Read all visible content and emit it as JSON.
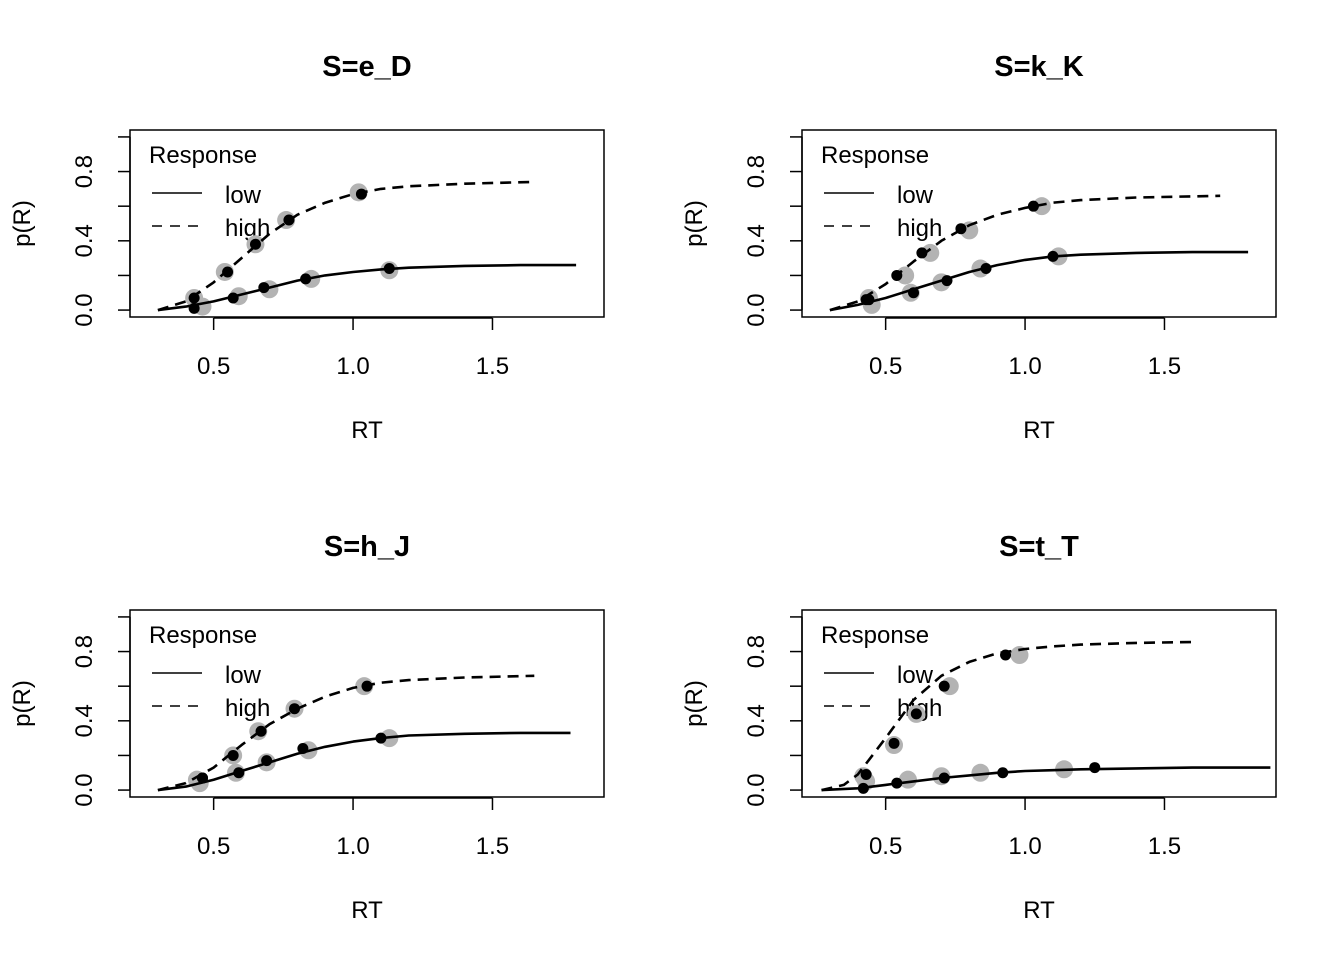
{
  "chart_data": [
    {
      "type": "line",
      "title": "S=e_D",
      "xlabel": "RT",
      "ylabel": "p(R)",
      "xlim": [
        0.2,
        1.9
      ],
      "ylim": [
        -0.04,
        1.04
      ],
      "x_ticks": [
        "0.5",
        "1.0",
        "1.5"
      ],
      "y_ticks": [
        "0.0",
        "0.4",
        "0.8"
      ],
      "legend": {
        "title": "Response",
        "entries": [
          "low",
          "high"
        ],
        "position": "top-left"
      },
      "curves": [
        {
          "name": "low",
          "style": "solid",
          "x": [
            0.3,
            0.4,
            0.5,
            0.6,
            0.7,
            0.8,
            0.9,
            1.0,
            1.1,
            1.2,
            1.4,
            1.6,
            1.8
          ],
          "y": [
            0.0,
            0.02,
            0.05,
            0.09,
            0.13,
            0.17,
            0.2,
            0.22,
            0.235,
            0.245,
            0.255,
            0.26,
            0.26
          ]
        },
        {
          "name": "high",
          "style": "dashed",
          "x": [
            0.3,
            0.4,
            0.5,
            0.6,
            0.7,
            0.8,
            0.9,
            1.0,
            1.1,
            1.2,
            1.4,
            1.65
          ],
          "y": [
            0.0,
            0.05,
            0.16,
            0.3,
            0.44,
            0.55,
            0.62,
            0.67,
            0.7,
            0.715,
            0.73,
            0.74
          ]
        }
      ],
      "observed": [
        {
          "name": "low",
          "x": [
            0.46,
            0.59,
            0.7,
            0.85,
            1.13
          ],
          "y": [
            0.02,
            0.08,
            0.12,
            0.18,
            0.23
          ]
        },
        {
          "name": "high",
          "x": [
            0.43,
            0.54,
            0.65,
            0.76,
            1.02
          ],
          "y": [
            0.07,
            0.22,
            0.38,
            0.52,
            0.68
          ]
        }
      ],
      "predicted": [
        {
          "name": "low",
          "x": [
            0.43,
            0.57,
            0.68,
            0.83,
            1.13
          ],
          "y": [
            0.01,
            0.07,
            0.13,
            0.18,
            0.24
          ]
        },
        {
          "name": "high",
          "x": [
            0.43,
            0.55,
            0.65,
            0.77,
            1.03
          ],
          "y": [
            0.07,
            0.22,
            0.38,
            0.52,
            0.67
          ]
        }
      ]
    },
    {
      "type": "line",
      "title": "S=k_K",
      "xlabel": "RT",
      "ylabel": "p(R)",
      "xlim": [
        0.2,
        1.9
      ],
      "ylim": [
        -0.04,
        1.04
      ],
      "x_ticks": [
        "0.5",
        "1.0",
        "1.5"
      ],
      "y_ticks": [
        "0.0",
        "0.4",
        "0.8"
      ],
      "legend": {
        "title": "Response",
        "entries": [
          "low",
          "high"
        ],
        "position": "top-left"
      },
      "curves": [
        {
          "name": "low",
          "style": "solid",
          "x": [
            0.3,
            0.4,
            0.5,
            0.6,
            0.7,
            0.8,
            0.9,
            1.0,
            1.1,
            1.2,
            1.4,
            1.6,
            1.8
          ],
          "y": [
            0.0,
            0.03,
            0.07,
            0.12,
            0.17,
            0.22,
            0.26,
            0.29,
            0.31,
            0.32,
            0.33,
            0.335,
            0.335
          ]
        },
        {
          "name": "high",
          "style": "dashed",
          "x": [
            0.3,
            0.4,
            0.5,
            0.6,
            0.7,
            0.8,
            0.9,
            1.0,
            1.1,
            1.2,
            1.4,
            1.7
          ],
          "y": [
            0.0,
            0.05,
            0.15,
            0.28,
            0.4,
            0.49,
            0.55,
            0.59,
            0.62,
            0.635,
            0.65,
            0.66
          ]
        }
      ],
      "observed": [
        {
          "name": "low",
          "x": [
            0.45,
            0.59,
            0.7,
            0.84,
            1.12
          ],
          "y": [
            0.03,
            0.1,
            0.16,
            0.24,
            0.31
          ]
        },
        {
          "name": "high",
          "x": [
            0.44,
            0.57,
            0.66,
            0.8,
            1.06
          ],
          "y": [
            0.07,
            0.2,
            0.33,
            0.46,
            0.6
          ]
        }
      ],
      "predicted": [
        {
          "name": "low",
          "x": [
            0.44,
            0.6,
            0.72,
            0.86,
            1.1
          ],
          "y": [
            0.06,
            0.1,
            0.17,
            0.24,
            0.31
          ]
        },
        {
          "name": "high",
          "x": [
            0.43,
            0.54,
            0.63,
            0.77,
            1.03
          ],
          "y": [
            0.06,
            0.2,
            0.33,
            0.47,
            0.6
          ]
        }
      ]
    },
    {
      "type": "line",
      "title": "S=h_J",
      "xlabel": "RT",
      "ylabel": "p(R)",
      "xlim": [
        0.2,
        1.9
      ],
      "ylim": [
        -0.04,
        1.04
      ],
      "x_ticks": [
        "0.5",
        "1.0",
        "1.5"
      ],
      "y_ticks": [
        "0.0",
        "0.4",
        "0.8"
      ],
      "legend": {
        "title": "Response",
        "entries": [
          "low",
          "high"
        ],
        "position": "top-left"
      },
      "curves": [
        {
          "name": "low",
          "style": "solid",
          "x": [
            0.3,
            0.4,
            0.5,
            0.6,
            0.7,
            0.8,
            0.9,
            1.0,
            1.1,
            1.2,
            1.4,
            1.6,
            1.78
          ],
          "y": [
            0.0,
            0.02,
            0.06,
            0.11,
            0.16,
            0.21,
            0.25,
            0.28,
            0.3,
            0.315,
            0.325,
            0.33,
            0.33
          ]
        },
        {
          "name": "high",
          "style": "dashed",
          "x": [
            0.3,
            0.4,
            0.5,
            0.6,
            0.7,
            0.8,
            0.9,
            1.0,
            1.1,
            1.2,
            1.4,
            1.65
          ],
          "y": [
            0.0,
            0.04,
            0.13,
            0.26,
            0.38,
            0.47,
            0.54,
            0.59,
            0.62,
            0.635,
            0.65,
            0.66
          ]
        }
      ],
      "observed": [
        {
          "name": "low",
          "x": [
            0.45,
            0.58,
            0.69,
            0.84,
            1.13
          ],
          "y": [
            0.04,
            0.1,
            0.16,
            0.23,
            0.3
          ]
        },
        {
          "name": "high",
          "x": [
            0.44,
            0.57,
            0.66,
            0.79,
            1.04
          ],
          "y": [
            0.06,
            0.2,
            0.34,
            0.47,
            0.6
          ]
        }
      ],
      "predicted": [
        {
          "name": "low",
          "x": [
            0.46,
            0.59,
            0.69,
            0.82,
            1.1
          ],
          "y": [
            0.07,
            0.1,
            0.17,
            0.24,
            0.3
          ]
        },
        {
          "name": "high",
          "x": [
            0.46,
            0.57,
            0.67,
            0.79,
            1.05
          ],
          "y": [
            0.07,
            0.2,
            0.34,
            0.47,
            0.6
          ]
        }
      ]
    },
    {
      "type": "line",
      "title": "S=t_T",
      "xlabel": "RT",
      "ylabel": "p(R)",
      "xlim": [
        0.2,
        1.9
      ],
      "ylim": [
        -0.04,
        1.04
      ],
      "x_ticks": [
        "0.5",
        "1.0",
        "1.5"
      ],
      "y_ticks": [
        "0.0",
        "0.4",
        "0.8"
      ],
      "legend": {
        "title": "Response",
        "entries": [
          "low",
          "high"
        ],
        "position": "top-left"
      },
      "curves": [
        {
          "name": "low",
          "style": "solid",
          "x": [
            0.27,
            0.4,
            0.5,
            0.6,
            0.7,
            0.8,
            0.9,
            1.0,
            1.1,
            1.2,
            1.4,
            1.6,
            1.88
          ],
          "y": [
            0.0,
            0.01,
            0.03,
            0.05,
            0.07,
            0.085,
            0.1,
            0.11,
            0.115,
            0.12,
            0.125,
            0.13,
            0.13
          ]
        },
        {
          "name": "high",
          "style": "dashed",
          "x": [
            0.27,
            0.35,
            0.4,
            0.5,
            0.6,
            0.7,
            0.8,
            0.9,
            1.0,
            1.1,
            1.2,
            1.4,
            1.6
          ],
          "y": [
            0.0,
            0.03,
            0.09,
            0.3,
            0.52,
            0.66,
            0.74,
            0.79,
            0.815,
            0.83,
            0.84,
            0.85,
            0.855
          ]
        }
      ],
      "observed": [
        {
          "name": "low",
          "x": [
            0.43,
            0.58,
            0.7,
            0.84,
            1.14
          ],
          "y": [
            0.05,
            0.06,
            0.08,
            0.1,
            0.12
          ]
        },
        {
          "name": "high",
          "x": [
            0.42,
            0.53,
            0.61,
            0.73,
            0.98
          ],
          "y": [
            0.08,
            0.26,
            0.44,
            0.6,
            0.78
          ]
        }
      ],
      "predicted": [
        {
          "name": "low",
          "x": [
            0.42,
            0.54,
            0.71,
            0.92,
            1.25
          ],
          "y": [
            0.01,
            0.04,
            0.07,
            0.1,
            0.13
          ]
        },
        {
          "name": "high",
          "x": [
            0.43,
            0.53,
            0.61,
            0.71,
            0.93
          ],
          "y": [
            0.09,
            0.27,
            0.44,
            0.6,
            0.78
          ]
        }
      ]
    }
  ]
}
